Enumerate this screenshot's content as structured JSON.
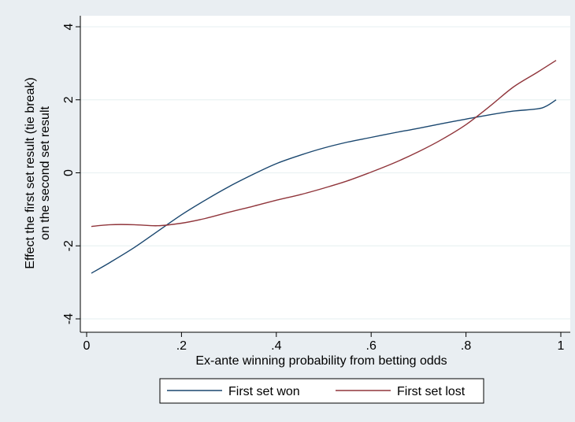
{
  "chart_data": {
    "type": "line",
    "xlabel": "Ex-ante winning probability from betting odds",
    "ylabel": [
      "Effect the first set result (tie break)",
      "on the second set result"
    ],
    "xlim": [
      0,
      1
    ],
    "ylim": [
      -4,
      4
    ],
    "x_ticks": [
      0,
      0.2,
      0.4,
      0.6,
      0.8,
      1
    ],
    "x_tick_labels": [
      "0",
      ".2",
      ".4",
      ".6",
      ".8",
      "1"
    ],
    "y_ticks": [
      -4,
      -2,
      0,
      2,
      4
    ],
    "y_tick_labels": [
      "-4",
      "-2",
      "0",
      "2",
      "4"
    ],
    "grid": "horizontal",
    "legend": "bottom",
    "series": [
      {
        "name": "First set won",
        "color": "#1a476f",
        "x": [
          0.01,
          0.05,
          0.1,
          0.15,
          0.2,
          0.25,
          0.3,
          0.35,
          0.4,
          0.45,
          0.5,
          0.55,
          0.6,
          0.65,
          0.7,
          0.75,
          0.8,
          0.85,
          0.9,
          0.95,
          0.97,
          0.99
        ],
        "y": [
          -2.75,
          -2.45,
          -2.05,
          -1.6,
          -1.15,
          -0.75,
          -0.38,
          -0.05,
          0.25,
          0.48,
          0.68,
          0.84,
          0.97,
          1.1,
          1.22,
          1.35,
          1.47,
          1.59,
          1.69,
          1.75,
          1.83,
          2.0
        ]
      },
      {
        "name": "First set lost",
        "color": "#90353b",
        "x": [
          0.01,
          0.05,
          0.1,
          0.15,
          0.2,
          0.25,
          0.3,
          0.35,
          0.4,
          0.45,
          0.5,
          0.55,
          0.6,
          0.65,
          0.7,
          0.75,
          0.8,
          0.85,
          0.9,
          0.95,
          0.99
        ],
        "y": [
          -1.47,
          -1.42,
          -1.42,
          -1.45,
          -1.38,
          -1.25,
          -1.08,
          -0.92,
          -0.75,
          -0.6,
          -0.42,
          -0.22,
          0.02,
          0.28,
          0.58,
          0.92,
          1.32,
          1.82,
          2.35,
          2.75,
          3.08
        ]
      }
    ]
  }
}
